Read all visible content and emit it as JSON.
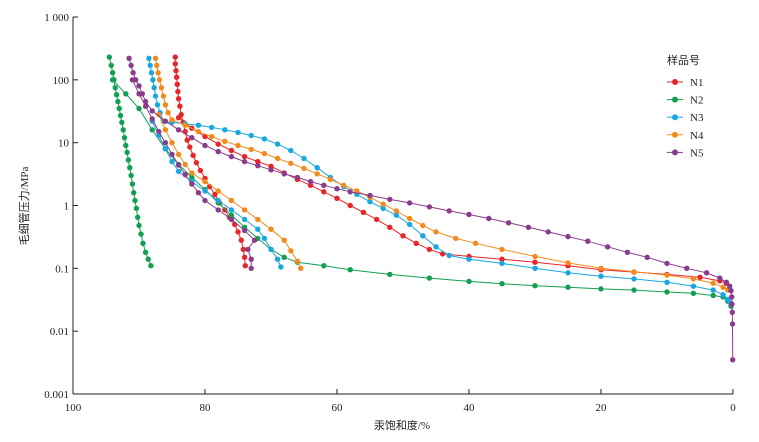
{
  "chart_data": {
    "type": "scatter",
    "title": "",
    "xlabel": "汞饱和度/%",
    "ylabel": "毛细管压力/MPa",
    "x_axis": {
      "min": 0,
      "max": 100,
      "reversed": true,
      "ticks": [
        100,
        80,
        60,
        40,
        20,
        0
      ],
      "tick_labels": [
        "100",
        "80",
        "60",
        "40",
        "20",
        "0"
      ]
    },
    "y_axis": {
      "scale": "log",
      "min": 0.001,
      "max": 1000,
      "ticks": [
        0.001,
        0.01,
        0.1,
        1,
        10,
        100,
        1000
      ],
      "tick_labels": [
        "0.001",
        "0.01",
        "0.1",
        "1",
        "10",
        "100",
        "1 000"
      ]
    },
    "grid": false,
    "legend": {
      "title": "样品号",
      "placement": "right"
    },
    "series": [
      {
        "name": "N1",
        "color": "#e8262a",
        "marker": "circle",
        "intrusion": [
          [
            84.5,
            230
          ],
          [
            84.5,
            180
          ],
          [
            84.4,
            140
          ],
          [
            84.3,
            110
          ],
          [
            84.2,
            85
          ],
          [
            84.1,
            65
          ],
          [
            84,
            50
          ],
          [
            83.8,
            38
          ],
          [
            83.6,
            28
          ],
          [
            83.3,
            21
          ],
          [
            83,
            15
          ],
          [
            82.7,
            11
          ],
          [
            82.3,
            8.5
          ],
          [
            81.8,
            6.3
          ],
          [
            81.3,
            4.8
          ],
          [
            80.7,
            3.6
          ],
          [
            80,
            2.7
          ],
          [
            79.3,
            2
          ],
          [
            78.5,
            1.5
          ],
          [
            77.8,
            1.1
          ],
          [
            77,
            0.85
          ],
          [
            76.3,
            0.65
          ],
          [
            75.5,
            0.5
          ],
          [
            75,
            0.38
          ],
          [
            74.5,
            0.28
          ],
          [
            74.2,
            0.2
          ],
          [
            74,
            0.15
          ],
          [
            73.9,
            0.11
          ]
        ],
        "extrusion": [
          [
            84,
            25
          ],
          [
            82,
            17
          ],
          [
            80,
            12.5
          ],
          [
            78,
            9.5
          ],
          [
            76,
            7.5
          ],
          [
            74,
            6
          ],
          [
            72,
            5
          ],
          [
            70,
            4.2
          ],
          [
            68,
            3.3
          ],
          [
            66,
            2.6
          ],
          [
            64,
            2.1
          ],
          [
            62,
            1.65
          ],
          [
            60,
            1.3
          ],
          [
            58,
            1
          ],
          [
            56,
            0.78
          ],
          [
            54,
            0.6
          ],
          [
            52,
            0.45
          ],
          [
            50,
            0.33
          ],
          [
            48,
            0.25
          ],
          [
            46,
            0.2
          ],
          [
            44,
            0.17
          ],
          [
            40,
            0.155
          ],
          [
            35,
            0.14
          ],
          [
            30,
            0.125
          ],
          [
            25,
            0.11
          ],
          [
            20,
            0.095
          ],
          [
            15,
            0.087
          ],
          [
            10,
            0.08
          ],
          [
            5,
            0.072
          ],
          [
            2,
            0.063
          ],
          [
            1,
            0.058
          ]
        ]
      },
      {
        "name": "N2",
        "color": "#11a051",
        "marker": "circle",
        "intrusion": [
          [
            94.5,
            230
          ],
          [
            94.2,
            170
          ],
          [
            94,
            130
          ],
          [
            93.8,
            100
          ],
          [
            93.6,
            75
          ],
          [
            93.4,
            58
          ],
          [
            93.2,
            45
          ],
          [
            93,
            35
          ],
          [
            92.8,
            27
          ],
          [
            92.6,
            21
          ],
          [
            92.4,
            16
          ],
          [
            92.2,
            12
          ],
          [
            92,
            9
          ],
          [
            91.8,
            7
          ],
          [
            91.6,
            5.3
          ],
          [
            91.4,
            4
          ],
          [
            91.2,
            3
          ],
          [
            91,
            2.2
          ],
          [
            90.8,
            1.6
          ],
          [
            90.6,
            1.2
          ],
          [
            90.4,
            0.9
          ],
          [
            90.2,
            0.65
          ],
          [
            90,
            0.48
          ],
          [
            89.7,
            0.35
          ],
          [
            89.4,
            0.25
          ],
          [
            89,
            0.18
          ],
          [
            88.6,
            0.14
          ],
          [
            88.2,
            0.11
          ]
        ],
        "extrusion": [
          [
            94,
            100
          ],
          [
            92,
            60
          ],
          [
            90,
            35
          ],
          [
            88,
            16
          ],
          [
            86,
            8
          ],
          [
            84,
            4.5
          ],
          [
            82,
            2.8
          ],
          [
            80,
            1.8
          ],
          [
            78,
            1.1
          ],
          [
            76,
            0.7
          ],
          [
            74,
            0.45
          ],
          [
            72,
            0.3
          ],
          [
            70,
            0.2
          ],
          [
            68,
            0.15
          ],
          [
            66,
            0.125
          ],
          [
            62,
            0.11
          ],
          [
            58,
            0.095
          ],
          [
            52,
            0.08
          ],
          [
            46,
            0.07
          ],
          [
            40,
            0.062
          ],
          [
            35,
            0.057
          ],
          [
            30,
            0.053
          ],
          [
            25,
            0.05
          ],
          [
            20,
            0.047
          ],
          [
            15,
            0.045
          ],
          [
            10,
            0.042
          ],
          [
            6,
            0.04
          ],
          [
            3,
            0.037
          ],
          [
            1.5,
            0.035
          ],
          [
            0.8,
            0.03
          ],
          [
            0.3,
            0.025
          ]
        ]
      },
      {
        "name": "N3",
        "color": "#1aa7df",
        "marker": "circle",
        "intrusion": [
          [
            88.5,
            220
          ],
          [
            88.3,
            170
          ],
          [
            88.1,
            130
          ],
          [
            87.9,
            100
          ],
          [
            87.7,
            75
          ],
          [
            87.5,
            55
          ],
          [
            87.2,
            40
          ],
          [
            86.8,
            30
          ],
          [
            86.3,
            22
          ],
          [
            85,
            21
          ],
          [
            83,
            20
          ],
          [
            81,
            19
          ],
          [
            79,
            17.5
          ],
          [
            77,
            16
          ],
          [
            75,
            14.5
          ],
          [
            73,
            13
          ],
          [
            71,
            11.5
          ],
          [
            69,
            9.5
          ],
          [
            67,
            7.5
          ],
          [
            65,
            5.6
          ],
          [
            63,
            4
          ],
          [
            61,
            2.8
          ],
          [
            59,
            2
          ],
          [
            57,
            1.5
          ],
          [
            55,
            1.15
          ],
          [
            53,
            0.9
          ],
          [
            51,
            0.7
          ],
          [
            49,
            0.5
          ],
          [
            47,
            0.33
          ],
          [
            45,
            0.22
          ],
          [
            43,
            0.16
          ],
          [
            40,
            0.14
          ],
          [
            35,
            0.12
          ],
          [
            30,
            0.1
          ],
          [
            25,
            0.085
          ],
          [
            20,
            0.075
          ],
          [
            15,
            0.068
          ],
          [
            10,
            0.06
          ],
          [
            6,
            0.052
          ],
          [
            3,
            0.045
          ],
          [
            1.5,
            0.038
          ],
          [
            0.8,
            0.032
          ],
          [
            0.4,
            0.028
          ]
        ],
        "extrusion": [
          [
            88,
            22
          ],
          [
            87,
            13
          ],
          [
            86,
            8
          ],
          [
            85,
            5
          ],
          [
            84,
            3.5
          ],
          [
            82,
            2.4
          ],
          [
            80,
            1.7
          ],
          [
            78,
            1.2
          ],
          [
            76,
            0.85
          ],
          [
            74,
            0.6
          ],
          [
            72,
            0.42
          ],
          [
            71,
            0.3
          ],
          [
            70,
            0.2
          ],
          [
            69,
            0.14
          ],
          [
            68.5,
            0.105
          ]
        ]
      },
      {
        "name": "N4",
        "color": "#f28b1e",
        "marker": "circle",
        "intrusion": [
          [
            87.5,
            220
          ],
          [
            87.3,
            170
          ],
          [
            87.1,
            130
          ],
          [
            86.9,
            100
          ],
          [
            86.6,
            75
          ],
          [
            86.3,
            55
          ],
          [
            86,
            40
          ],
          [
            85.6,
            30
          ],
          [
            85,
            23
          ],
          [
            83,
            19
          ],
          [
            81,
            15
          ],
          [
            79,
            12.5
          ],
          [
            77,
            10.5
          ],
          [
            75,
            9
          ],
          [
            73,
            7.8
          ],
          [
            71,
            6.7
          ],
          [
            69,
            5.6
          ],
          [
            67,
            4.7
          ],
          [
            65,
            3.9
          ],
          [
            63,
            3.2
          ],
          [
            61,
            2.6
          ],
          [
            59,
            2.1
          ],
          [
            57,
            1.7
          ],
          [
            55,
            1.35
          ],
          [
            53,
            1.05
          ],
          [
            51,
            0.82
          ],
          [
            49,
            0.62
          ],
          [
            47,
            0.48
          ],
          [
            45,
            0.38
          ],
          [
            42,
            0.3
          ],
          [
            39,
            0.25
          ],
          [
            35,
            0.2
          ],
          [
            30,
            0.155
          ],
          [
            25,
            0.122
          ],
          [
            20,
            0.1
          ],
          [
            15,
            0.088
          ],
          [
            10,
            0.078
          ],
          [
            6,
            0.068
          ],
          [
            3,
            0.058
          ],
          [
            1.5,
            0.05
          ],
          [
            0.8,
            0.045
          ]
        ],
        "extrusion": [
          [
            87,
            28
          ],
          [
            86,
            16
          ],
          [
            85,
            10
          ],
          [
            84,
            6.5
          ],
          [
            83,
            4.5
          ],
          [
            82,
            3.3
          ],
          [
            80,
            2.4
          ],
          [
            78,
            1.7
          ],
          [
            76,
            1.2
          ],
          [
            74,
            0.85
          ],
          [
            72,
            0.6
          ],
          [
            70,
            0.42
          ],
          [
            68,
            0.28
          ],
          [
            67,
            0.19
          ],
          [
            66,
            0.13
          ],
          [
            65.5,
            0.1
          ]
        ]
      },
      {
        "name": "N5",
        "color": "#8a3c8c",
        "marker": "circle",
        "intrusion": [
          [
            91.5,
            220
          ],
          [
            91.2,
            170
          ],
          [
            90.9,
            130
          ],
          [
            90.5,
            100
          ],
          [
            90,
            80
          ],
          [
            89.5,
            60
          ],
          [
            89,
            45
          ],
          [
            88,
            32
          ],
          [
            86,
            22
          ],
          [
            84,
            16
          ],
          [
            82,
            12
          ],
          [
            80,
            9
          ],
          [
            78,
            7.2
          ],
          [
            76,
            6
          ],
          [
            74,
            5
          ],
          [
            72,
            4.3
          ],
          [
            70,
            3.7
          ],
          [
            68,
            3.2
          ],
          [
            66,
            2.8
          ],
          [
            64,
            2.4
          ],
          [
            62,
            2.1
          ],
          [
            60,
            1.85
          ],
          [
            58,
            1.65
          ],
          [
            55,
            1.45
          ],
          [
            52,
            1.25
          ],
          [
            49,
            1.1
          ],
          [
            46,
            0.95
          ],
          [
            43,
            0.82
          ],
          [
            40,
            0.72
          ],
          [
            37,
            0.62
          ],
          [
            34,
            0.53
          ],
          [
            31,
            0.45
          ],
          [
            28,
            0.38
          ],
          [
            25,
            0.32
          ],
          [
            22,
            0.27
          ],
          [
            19,
            0.22
          ],
          [
            16,
            0.18
          ],
          [
            13,
            0.15
          ],
          [
            10,
            0.12
          ],
          [
            7,
            0.1
          ],
          [
            4,
            0.085
          ],
          [
            2,
            0.07
          ],
          [
            1,
            0.06
          ],
          [
            0.5,
            0.052
          ],
          [
            0.3,
            0.044
          ],
          [
            0.2,
            0.035
          ],
          [
            0.15,
            0.027
          ],
          [
            0.1,
            0.02
          ],
          [
            0.08,
            0.013
          ],
          [
            0.05,
            0.0035
          ]
        ],
        "extrusion": [
          [
            91,
            100
          ],
          [
            90,
            60
          ],
          [
            89,
            38
          ],
          [
            88,
            24
          ],
          [
            87,
            15
          ],
          [
            86,
            10
          ],
          [
            85,
            6.5
          ],
          [
            84,
            4.4
          ],
          [
            83,
            3.1
          ],
          [
            82,
            2.2
          ],
          [
            81,
            1.6
          ],
          [
            80,
            1.2
          ],
          [
            78,
            0.85
          ],
          [
            76,
            0.6
          ],
          [
            74,
            0.4
          ],
          [
            72.5,
            0.28
          ],
          [
            73.5,
            0.2
          ],
          [
            73,
            0.14
          ],
          [
            73,
            0.1
          ]
        ]
      }
    ]
  }
}
